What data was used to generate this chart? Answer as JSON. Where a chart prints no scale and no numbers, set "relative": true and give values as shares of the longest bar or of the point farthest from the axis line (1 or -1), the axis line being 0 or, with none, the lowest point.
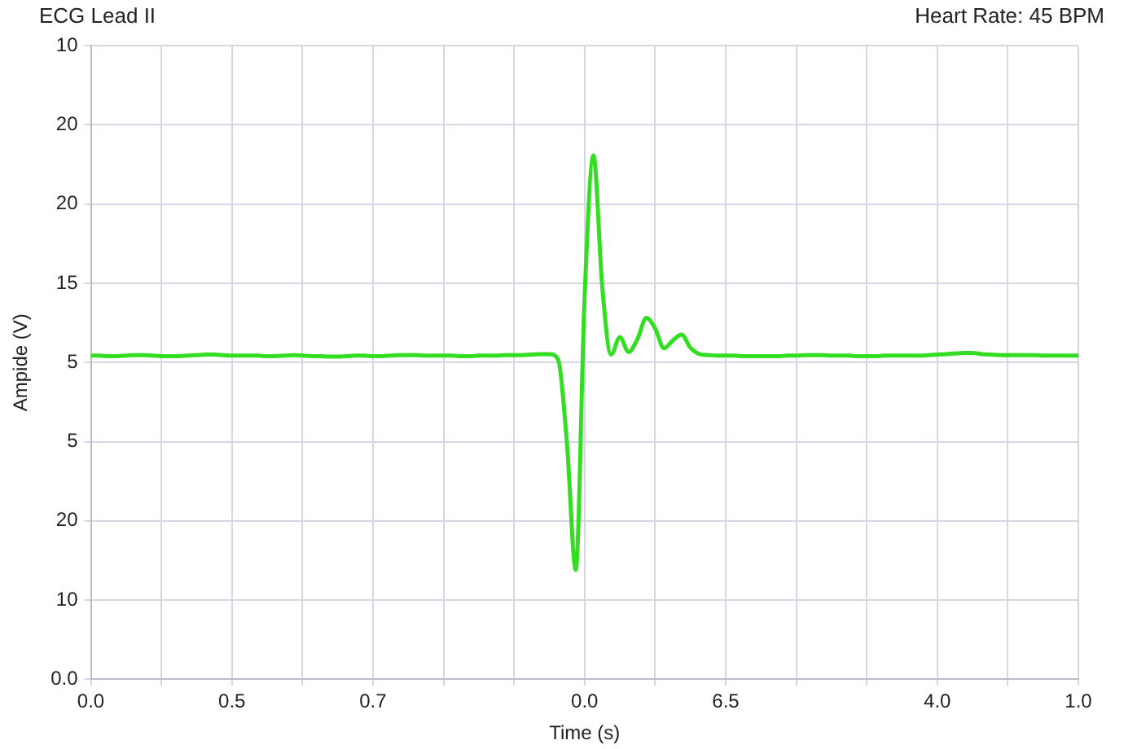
{
  "chart_data": {
    "type": "line",
    "title": "ECG Lead II",
    "subtitle": "Heart Rate: 45 BPM",
    "xlabel": "Time (s)",
    "ylabel": "Ampide (V)",
    "categories": [
      "0.0",
      null,
      null,
      null,
      null,
      null,
      null,
      null,
      null,
      null,
      null,
      null,
      null,
      null,
      null,
      null,
      "0.5",
      null,
      null,
      null,
      null,
      null,
      null,
      null,
      null,
      null,
      null,
      null,
      null,
      null,
      null,
      null,
      "0.7",
      null,
      null,
      null,
      null,
      null,
      null,
      null,
      null,
      null,
      null,
      null,
      null,
      null,
      null,
      null,
      null,
      null,
      null,
      null,
      null,
      null,
      null,
      null,
      "0.0",
      null,
      null,
      null,
      null,
      null,
      null,
      null,
      null,
      null,
      null,
      null,
      null,
      null,
      null,
      null,
      "6.5",
      null,
      null,
      null,
      null,
      null,
      null,
      null,
      null,
      null,
      null,
      null,
      null,
      null,
      null,
      null,
      null,
      null,
      null,
      null,
      null,
      null,
      null,
      null,
      "4.0",
      null,
      null,
      null,
      null,
      null,
      null,
      null,
      null,
      null,
      null,
      null,
      null,
      null,
      null,
      null,
      "1.0"
    ],
    "series": [
      {
        "color": "#33dd22",
        "values": [
          0.618,
          0.618,
          0.617,
          0.617,
          0.618,
          0.619,
          0.619,
          0.618,
          0.617,
          0.617,
          0.617,
          0.618,
          0.619,
          0.62,
          0.62,
          0.619,
          0.618,
          0.618,
          0.618,
          0.618,
          0.617,
          0.617,
          0.618,
          0.619,
          0.618,
          0.617,
          0.617,
          0.616,
          0.616,
          0.617,
          0.618,
          0.618,
          0.617,
          0.617,
          0.618,
          0.619,
          0.619,
          0.619,
          0.618,
          0.618,
          0.618,
          0.618,
          0.617,
          0.617,
          0.618,
          0.618,
          0.618,
          0.619,
          0.619,
          0.619,
          0.62,
          0.621,
          0.621,
          0.61,
          0.45,
          0.209,
          0.73,
          1,
          0.75,
          0.62,
          0.653,
          0.625,
          0.65,
          0.69,
          0.67,
          0.632,
          0.647,
          0.658,
          0.633,
          0.621,
          0.619,
          0.618,
          0.618,
          0.618,
          0.617,
          0.617,
          0.617,
          0.617,
          0.617,
          0.618,
          0.618,
          0.619,
          0.619,
          0.619,
          0.618,
          0.618,
          0.618,
          0.617,
          0.617,
          0.617,
          0.618,
          0.618,
          0.618,
          0.618,
          0.618,
          0.619,
          0.62,
          0.621,
          0.622,
          0.623,
          0.623,
          0.621,
          0.62,
          0.619,
          0.619,
          0.619,
          0.619,
          0.619,
          0.618,
          0.618,
          0.618,
          0.618,
          0.618
        ]
      }
    ],
    "relative": true,
    "annotations": [
      "10",
      "20",
      "20",
      "15",
      "5",
      "5",
      "20",
      "10",
      "0.0"
    ],
    "grid": true,
    "legend": false,
    "marker": "none",
    "line_style": "solid"
  }
}
